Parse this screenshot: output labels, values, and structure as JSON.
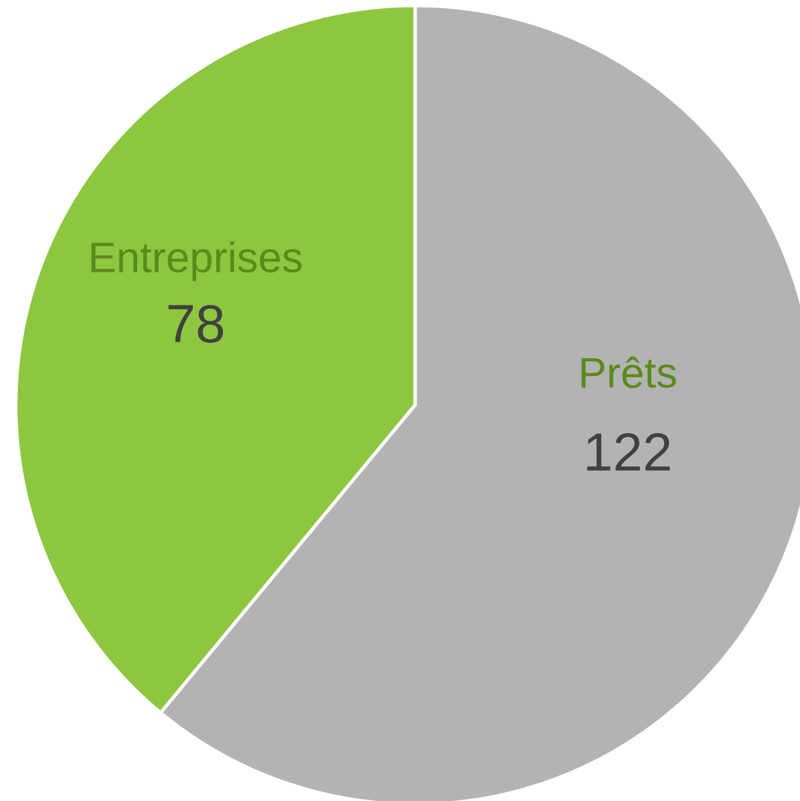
{
  "chart_data": {
    "type": "pie",
    "categories": [
      "Prêts",
      "Entreprises"
    ],
    "values": [
      122,
      78
    ],
    "colors": [
      "#b3b3b3",
      "#8dc63f"
    ],
    "label_color": "#5a8a1a",
    "value_color": "#404040"
  }
}
